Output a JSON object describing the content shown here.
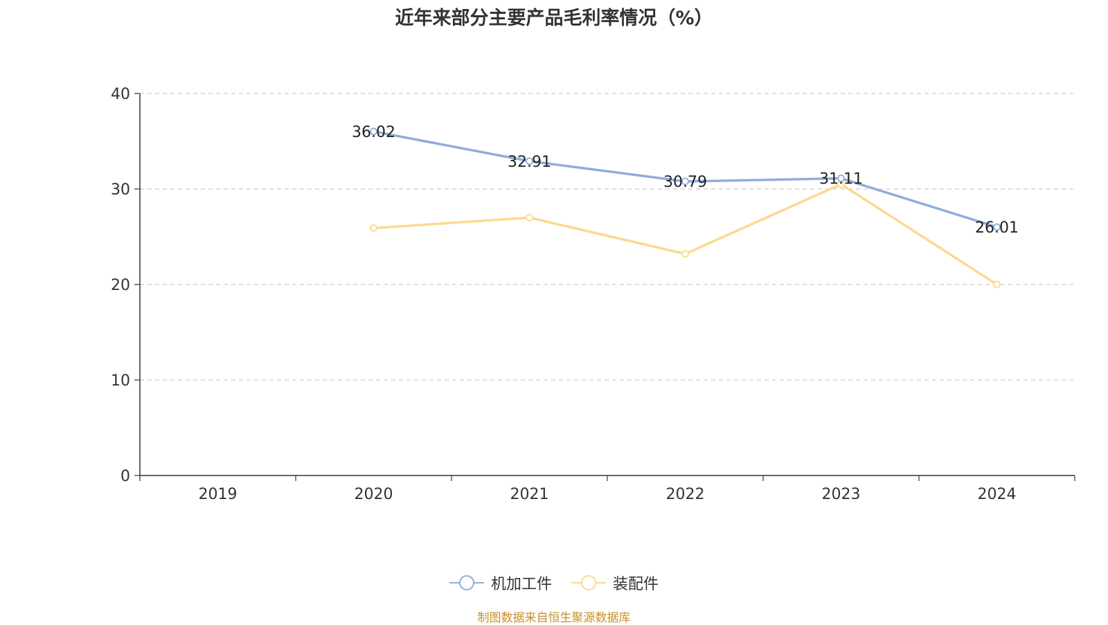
{
  "title": "近年来部分主要产品毛利率情况（%）",
  "source": "制图数据来自恒生聚源数据库",
  "colors": {
    "series1": "#8fadd9",
    "series2": "#fbd98f",
    "axis": "#333333",
    "grid": "#cccccc"
  },
  "chart_data": {
    "type": "line",
    "categories": [
      "2019",
      "2020",
      "2021",
      "2022",
      "2023",
      "2024"
    ],
    "ylim": [
      0,
      40
    ],
    "yticks": [
      0,
      10,
      20,
      30,
      40
    ],
    "grid": true,
    "legend_position": "bottom",
    "series": [
      {
        "name": "机加工件",
        "values": [
          null,
          36.02,
          32.91,
          30.79,
          31.11,
          26.01
        ],
        "labels": [
          "",
          "36.02",
          "32.91",
          "30.79",
          "31.11",
          "26.01"
        ]
      },
      {
        "name": "装配件",
        "values": [
          null,
          25.9,
          27.0,
          23.2,
          30.5,
          20.0
        ],
        "labels": [
          "",
          "",
          "",
          "",
          "",
          ""
        ]
      }
    ]
  }
}
